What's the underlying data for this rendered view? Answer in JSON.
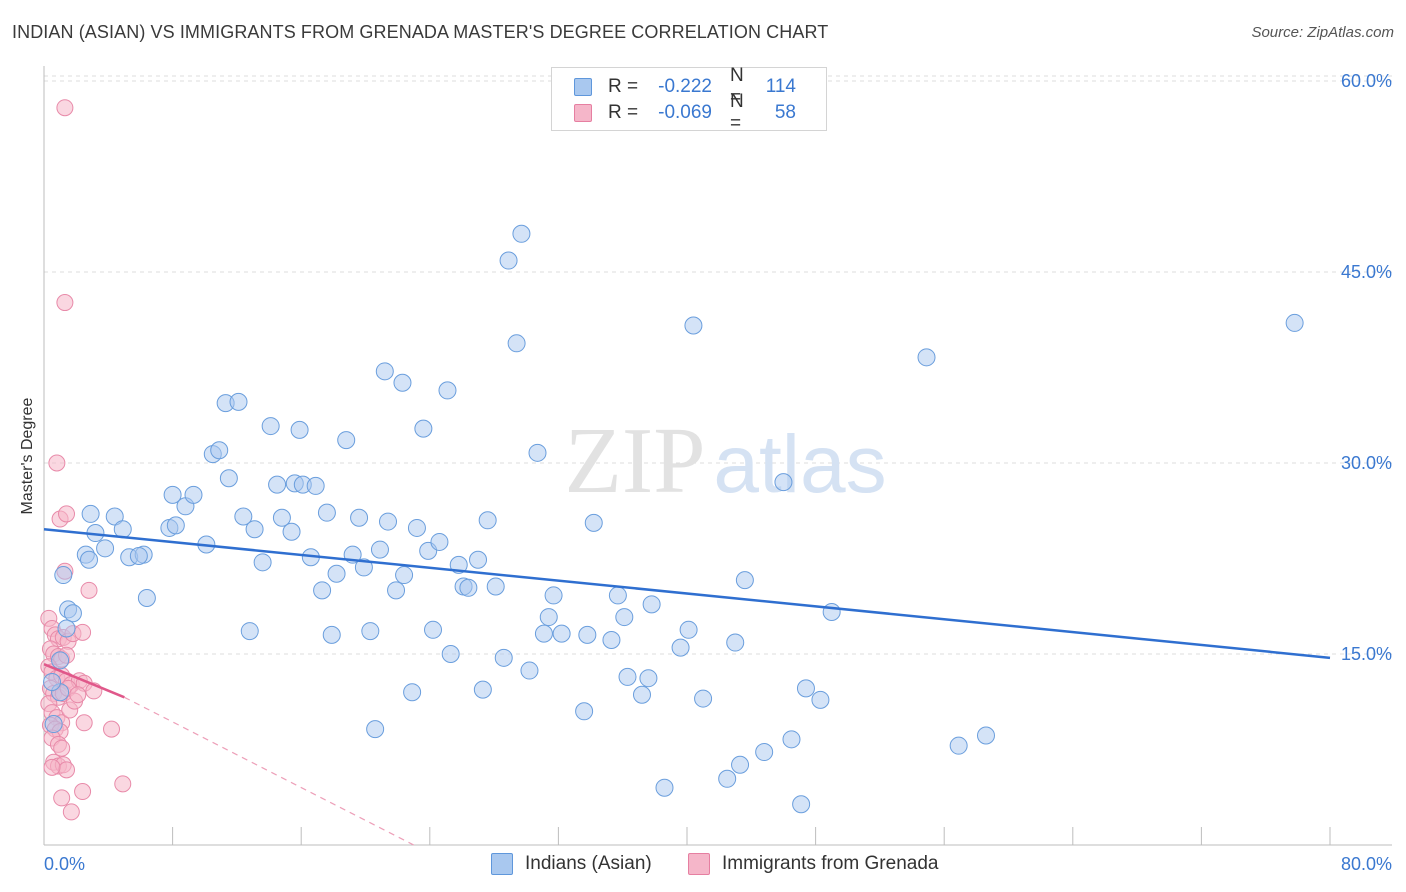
{
  "title": "INDIAN (ASIAN) VS IMMIGRANTS FROM GRENADA MASTER'S DEGREE CORRELATION CHART",
  "source": "Source: ZipAtlas.com",
  "watermark": {
    "zip": "ZIP",
    "atlas": "atlas"
  },
  "legend": {
    "r_label": "R =",
    "n_label": "N =",
    "series": [
      {
        "name": "Indians (Asian)",
        "r": "-0.222",
        "n": "114",
        "color": "#a9c8ef",
        "stroke": "#5f97db"
      },
      {
        "name": "Immigrants from Grenada",
        "r": "-0.069",
        "n": "58",
        "color": "#f5b6c9",
        "stroke": "#e67fa1"
      }
    ]
  },
  "chart_data": {
    "type": "scatter",
    "title": "INDIAN (ASIAN) VS IMMIGRANTS FROM GRENADA MASTER'S DEGREE CORRELATION CHART",
    "xlabel": "",
    "ylabel": "Master's Degree",
    "xlim": [
      0,
      80
    ],
    "ylim": [
      0,
      63
    ],
    "x_tick_labels": [
      "0.0%",
      "80.0%"
    ],
    "y_ticks": [
      15,
      30,
      45,
      60
    ],
    "y_tick_labels": [
      "15.0%",
      "30.0%",
      "45.0%",
      "60.0%"
    ],
    "grid": true,
    "series": [
      {
        "name": "Indians (Asian)",
        "color": "#a9c8ef",
        "trend": {
          "x": [
            0,
            80
          ],
          "y": [
            24.8,
            14.7
          ],
          "style": "solid",
          "color": "#2f6fd0"
        },
        "points": [
          [
            1.2,
            21.2
          ],
          [
            1.5,
            18.5
          ],
          [
            1.8,
            18.2
          ],
          [
            1.4,
            17.0
          ],
          [
            1.0,
            14.5
          ],
          [
            2.6,
            22.8
          ],
          [
            2.8,
            22.4
          ],
          [
            3.2,
            24.5
          ],
          [
            2.9,
            26.0
          ],
          [
            4.4,
            25.8
          ],
          [
            3.8,
            23.3
          ],
          [
            4.9,
            24.8
          ],
          [
            5.3,
            22.6
          ],
          [
            6.2,
            22.8
          ],
          [
            5.9,
            22.7
          ],
          [
            6.4,
            19.4
          ],
          [
            7.8,
            24.9
          ],
          [
            8.2,
            25.1
          ],
          [
            8.0,
            27.5
          ],
          [
            8.8,
            26.6
          ],
          [
            9.3,
            27.5
          ],
          [
            10.1,
            23.6
          ],
          [
            10.5,
            30.7
          ],
          [
            10.9,
            31.0
          ],
          [
            11.3,
            34.7
          ],
          [
            11.5,
            28.8
          ],
          [
            12.1,
            34.8
          ],
          [
            12.4,
            25.8
          ],
          [
            12.8,
            16.8
          ],
          [
            13.1,
            24.8
          ],
          [
            13.6,
            22.2
          ],
          [
            14.1,
            32.9
          ],
          [
            14.5,
            28.3
          ],
          [
            14.8,
            25.7
          ],
          [
            15.4,
            24.6
          ],
          [
            15.6,
            28.4
          ],
          [
            15.9,
            32.6
          ],
          [
            16.1,
            28.3
          ],
          [
            16.6,
            22.6
          ],
          [
            16.9,
            28.2
          ],
          [
            17.3,
            20.0
          ],
          [
            17.6,
            26.1
          ],
          [
            17.9,
            16.5
          ],
          [
            18.2,
            21.3
          ],
          [
            18.8,
            31.8
          ],
          [
            19.2,
            22.8
          ],
          [
            19.6,
            25.7
          ],
          [
            19.9,
            21.8
          ],
          [
            20.3,
            16.8
          ],
          [
            20.6,
            9.1
          ],
          [
            20.9,
            23.2
          ],
          [
            21.2,
            37.2
          ],
          [
            21.4,
            25.4
          ],
          [
            21.9,
            20.0
          ],
          [
            22.3,
            36.3
          ],
          [
            22.4,
            21.2
          ],
          [
            22.9,
            12.0
          ],
          [
            23.2,
            24.9
          ],
          [
            23.6,
            32.7
          ],
          [
            23.9,
            23.1
          ],
          [
            24.2,
            16.9
          ],
          [
            24.6,
            23.8
          ],
          [
            25.1,
            35.7
          ],
          [
            25.3,
            15.0
          ],
          [
            25.8,
            22.0
          ],
          [
            26.1,
            20.3
          ],
          [
            26.4,
            20.2
          ],
          [
            27.0,
            22.4
          ],
          [
            27.3,
            12.2
          ],
          [
            27.6,
            25.5
          ],
          [
            28.1,
            20.3
          ],
          [
            28.6,
            14.7
          ],
          [
            28.9,
            45.9
          ],
          [
            29.4,
            39.4
          ],
          [
            29.7,
            48.0
          ],
          [
            30.2,
            13.7
          ],
          [
            30.7,
            30.8
          ],
          [
            31.1,
            16.6
          ],
          [
            31.4,
            17.9
          ],
          [
            31.7,
            19.6
          ],
          [
            32.2,
            16.6
          ],
          [
            33.6,
            10.5
          ],
          [
            33.8,
            16.5
          ],
          [
            34.2,
            25.3
          ],
          [
            35.3,
            16.1
          ],
          [
            35.7,
            19.6
          ],
          [
            36.1,
            17.9
          ],
          [
            36.3,
            13.2
          ],
          [
            37.2,
            11.8
          ],
          [
            37.6,
            13.1
          ],
          [
            37.8,
            18.9
          ],
          [
            38.6,
            4.5
          ],
          [
            39.6,
            15.5
          ],
          [
            40.1,
            16.9
          ],
          [
            40.4,
            40.8
          ],
          [
            41.0,
            11.5
          ],
          [
            42.5,
            5.2
          ],
          [
            43.0,
            15.9
          ],
          [
            43.3,
            6.3
          ],
          [
            43.6,
            20.8
          ],
          [
            44.8,
            7.3
          ],
          [
            46.0,
            28.5
          ],
          [
            46.5,
            8.3
          ],
          [
            47.1,
            3.2
          ],
          [
            47.4,
            12.3
          ],
          [
            48.3,
            11.4
          ],
          [
            49.0,
            18.3
          ],
          [
            54.9,
            38.3
          ],
          [
            56.9,
            7.8
          ],
          [
            58.6,
            8.6
          ],
          [
            77.8,
            41.0
          ],
          [
            1.0,
            12.0
          ],
          [
            0.6,
            9.5
          ],
          [
            0.5,
            12.8
          ]
        ]
      },
      {
        "name": "Immigrants from Grenada",
        "color": "#f5b6c9",
        "trend": {
          "x": [
            0,
            5
          ],
          "y": [
            14.2,
            11.6
          ],
          "style": "solid",
          "color": "#e0588a",
          "extension": {
            "x": [
              5,
              23
            ],
            "y": [
              11.6,
              0.0
            ],
            "style": "dashed"
          }
        },
        "points": [
          [
            1.3,
            57.9
          ],
          [
            1.3,
            42.6
          ],
          [
            0.8,
            30.0
          ],
          [
            1.0,
            25.6
          ],
          [
            1.4,
            26.0
          ],
          [
            1.3,
            21.5
          ],
          [
            2.8,
            20.0
          ],
          [
            0.3,
            17.8
          ],
          [
            0.5,
            17.0
          ],
          [
            0.7,
            16.5
          ],
          [
            0.9,
            16.2
          ],
          [
            1.2,
            16.3
          ],
          [
            1.5,
            16.0
          ],
          [
            1.8,
            16.6
          ],
          [
            2.4,
            16.7
          ],
          [
            0.4,
            15.4
          ],
          [
            0.6,
            15.0
          ],
          [
            0.9,
            14.8
          ],
          [
            1.1,
            14.6
          ],
          [
            1.4,
            14.9
          ],
          [
            0.3,
            14.0
          ],
          [
            0.5,
            13.6
          ],
          [
            0.8,
            13.1
          ],
          [
            1.1,
            13.3
          ],
          [
            1.4,
            12.9
          ],
          [
            1.7,
            12.6
          ],
          [
            2.2,
            12.9
          ],
          [
            2.5,
            12.7
          ],
          [
            3.1,
            12.1
          ],
          [
            0.4,
            12.3
          ],
          [
            0.6,
            11.9
          ],
          [
            0.9,
            11.6
          ],
          [
            1.2,
            11.9
          ],
          [
            1.5,
            12.3
          ],
          [
            0.3,
            11.1
          ],
          [
            0.5,
            10.4
          ],
          [
            0.8,
            10.0
          ],
          [
            1.1,
            9.6
          ],
          [
            0.4,
            9.4
          ],
          [
            0.7,
            9.1
          ],
          [
            1.0,
            8.9
          ],
          [
            0.5,
            8.4
          ],
          [
            0.9,
            7.9
          ],
          [
            1.1,
            7.6
          ],
          [
            2.5,
            9.6
          ],
          [
            4.2,
            9.1
          ],
          [
            0.6,
            6.5
          ],
          [
            0.9,
            6.2
          ],
          [
            1.2,
            6.3
          ],
          [
            1.4,
            5.9
          ],
          [
            1.1,
            3.7
          ],
          [
            1.7,
            2.6
          ],
          [
            2.4,
            4.2
          ],
          [
            4.9,
            4.8
          ],
          [
            0.5,
            6.1
          ],
          [
            1.6,
            10.6
          ],
          [
            1.9,
            11.3
          ],
          [
            2.1,
            11.8
          ]
        ]
      }
    ]
  }
}
